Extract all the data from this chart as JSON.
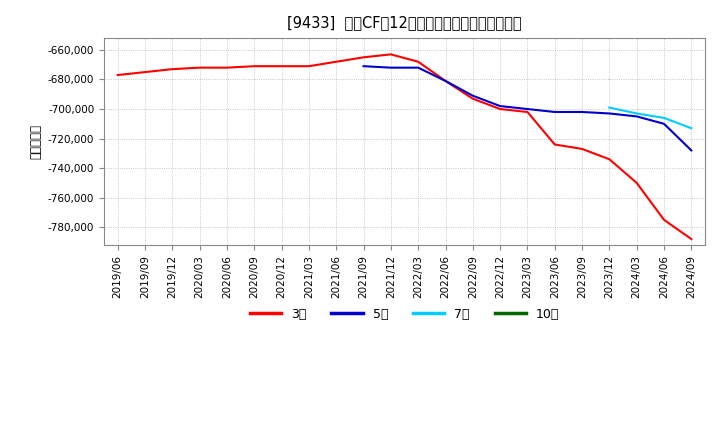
{
  "title": "[9433]  投資CFの12か月移動合計の平均値の推移",
  "ylabel": "（百万円）",
  "background_color": "#ffffff",
  "plot_bg_color": "#ffffff",
  "grid_color": "#999999",
  "ylim": [
    -792000,
    -652000
  ],
  "yticks": [
    -780000,
    -760000,
    -740000,
    -720000,
    -700000,
    -680000,
    -660000
  ],
  "x_labels": [
    "2019/06",
    "2019/09",
    "2019/12",
    "2020/03",
    "2020/06",
    "2020/09",
    "2020/12",
    "2021/03",
    "2021/06",
    "2021/09",
    "2021/12",
    "2022/03",
    "2022/06",
    "2022/09",
    "2022/12",
    "2023/03",
    "2023/06",
    "2023/09",
    "2023/12",
    "2024/03",
    "2024/06",
    "2024/09"
  ],
  "series": [
    {
      "label": "3年",
      "color": "#ff0000",
      "xi": [
        0,
        1,
        2,
        3,
        4,
        5,
        6,
        7,
        8,
        9,
        10,
        11,
        12,
        13,
        14,
        15,
        16,
        17,
        18,
        19,
        20,
        21
      ],
      "y": [
        -677000,
        -675000,
        -673000,
        -672000,
        -672000,
        -671000,
        -671000,
        -671000,
        -668000,
        -665000,
        -663000,
        -668000,
        -681000,
        -693000,
        -700000,
        -702000,
        -724000,
        -727000,
        -734000,
        -750000,
        -775000,
        -788000
      ]
    },
    {
      "label": "5年",
      "color": "#0000cc",
      "xi": [
        9,
        10,
        11,
        12,
        13,
        14,
        15,
        16,
        17,
        18,
        19,
        20,
        21
      ],
      "y": [
        -671000,
        -672000,
        -672000,
        -681000,
        -691000,
        -698000,
        -700000,
        -702000,
        -702000,
        -703000,
        -705000,
        -710000,
        -728000
      ]
    },
    {
      "label": "7年",
      "color": "#00ccff",
      "xi": [
        18,
        19,
        20,
        21
      ],
      "y": [
        -699000,
        -703000,
        -706000,
        -713000
      ]
    },
    {
      "label": "10年",
      "color": "#006600",
      "xi": [],
      "y": []
    }
  ],
  "legend_items": [
    {
      "label": "3年",
      "color": "#ff0000"
    },
    {
      "label": "5年",
      "color": "#0000cc"
    },
    {
      "label": "7年",
      "color": "#00ccff"
    },
    {
      "label": "10年",
      "color": "#006600"
    }
  ]
}
